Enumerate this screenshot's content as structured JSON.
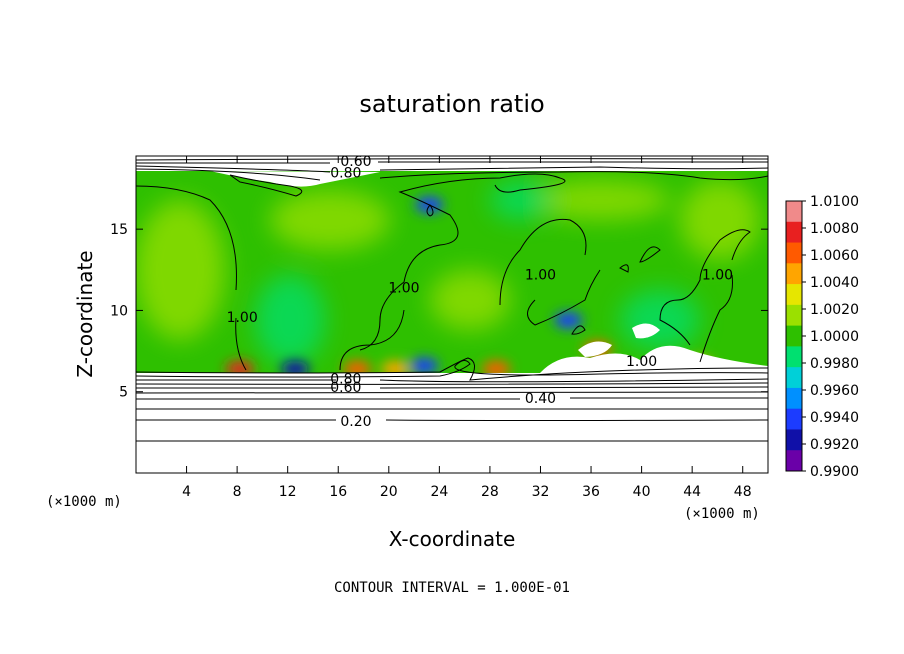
{
  "chart_data": {
    "type": "heatmap",
    "title": "saturation ratio",
    "xlabel": "X-coordinate",
    "ylabel": "Z-coordinate",
    "x_unit": "(×1000 m)",
    "z_unit": "(×1000 m)",
    "xlim": [
      0,
      50
    ],
    "ylim": [
      0,
      19.5
    ],
    "x_ticks": [
      4,
      8,
      12,
      16,
      20,
      24,
      28,
      32,
      36,
      40,
      44,
      48
    ],
    "y_ticks": [
      5,
      10,
      15
    ],
    "footer": "CONTOUR INTERVAL = 1.000E-01",
    "colorbar": {
      "ticks": [
        "1.0100",
        "1.0080",
        "1.0060",
        "1.0040",
        "1.0020",
        "1.0000",
        "0.9980",
        "0.9960",
        "0.9940",
        "0.9920",
        "0.9900"
      ],
      "colors": [
        "#f08a8a",
        "#e82020",
        "#ff5a00",
        "#ffa500",
        "#e6e600",
        "#9be000",
        "#2ec000",
        "#00e070",
        "#00d0d8",
        "#0090ff",
        "#1c3cff",
        "#1010a8",
        "#6a00a8"
      ]
    },
    "contour_labels": [
      {
        "text": "0.60",
        "x": 17.4,
        "z": 19.2
      },
      {
        "text": "0.80",
        "x": 16.6,
        "z": 18.5
      },
      {
        "text": "1.00",
        "x": 8.4,
        "z": 9.6
      },
      {
        "text": "1.00",
        "x": 21.2,
        "z": 11.4
      },
      {
        "text": "1.00",
        "x": 32.0,
        "z": 12.2
      },
      {
        "text": "1.00",
        "x": 46.0,
        "z": 12.2
      },
      {
        "text": "1.00",
        "x": 40.0,
        "z": 6.9
      },
      {
        "text": "0.80",
        "x": 16.6,
        "z": 5.8
      },
      {
        "text": "0.60",
        "x": 16.6,
        "z": 5.3
      },
      {
        "text": "0.40",
        "x": 32.0,
        "z": 4.6
      },
      {
        "text": "0.20",
        "x": 17.4,
        "z": 3.2
      }
    ],
    "warm_spots": [
      {
        "x": 8.2,
        "z": 6.4,
        "color": "#e82020"
      },
      {
        "x": 17.5,
        "z": 6.4,
        "color": "#ff5a00"
      },
      {
        "x": 20.5,
        "z": 6.4,
        "color": "#ffa500"
      },
      {
        "x": 28.5,
        "z": 6.4,
        "color": "#ff5a00"
      },
      {
        "x": 36.5,
        "z": 7.6,
        "color": "#ff5a00"
      },
      {
        "x": 44.5,
        "z": 6.6,
        "color": "#ffa500"
      }
    ],
    "cool_spots": [
      {
        "x": 12.6,
        "z": 6.4,
        "color": "#1010a8"
      },
      {
        "x": 22.8,
        "z": 6.6,
        "color": "#1c3cff"
      },
      {
        "x": 23.2,
        "z": 16.5,
        "color": "#1c3cff"
      },
      {
        "x": 34.2,
        "z": 9.4,
        "color": "#1c3cff"
      }
    ]
  }
}
